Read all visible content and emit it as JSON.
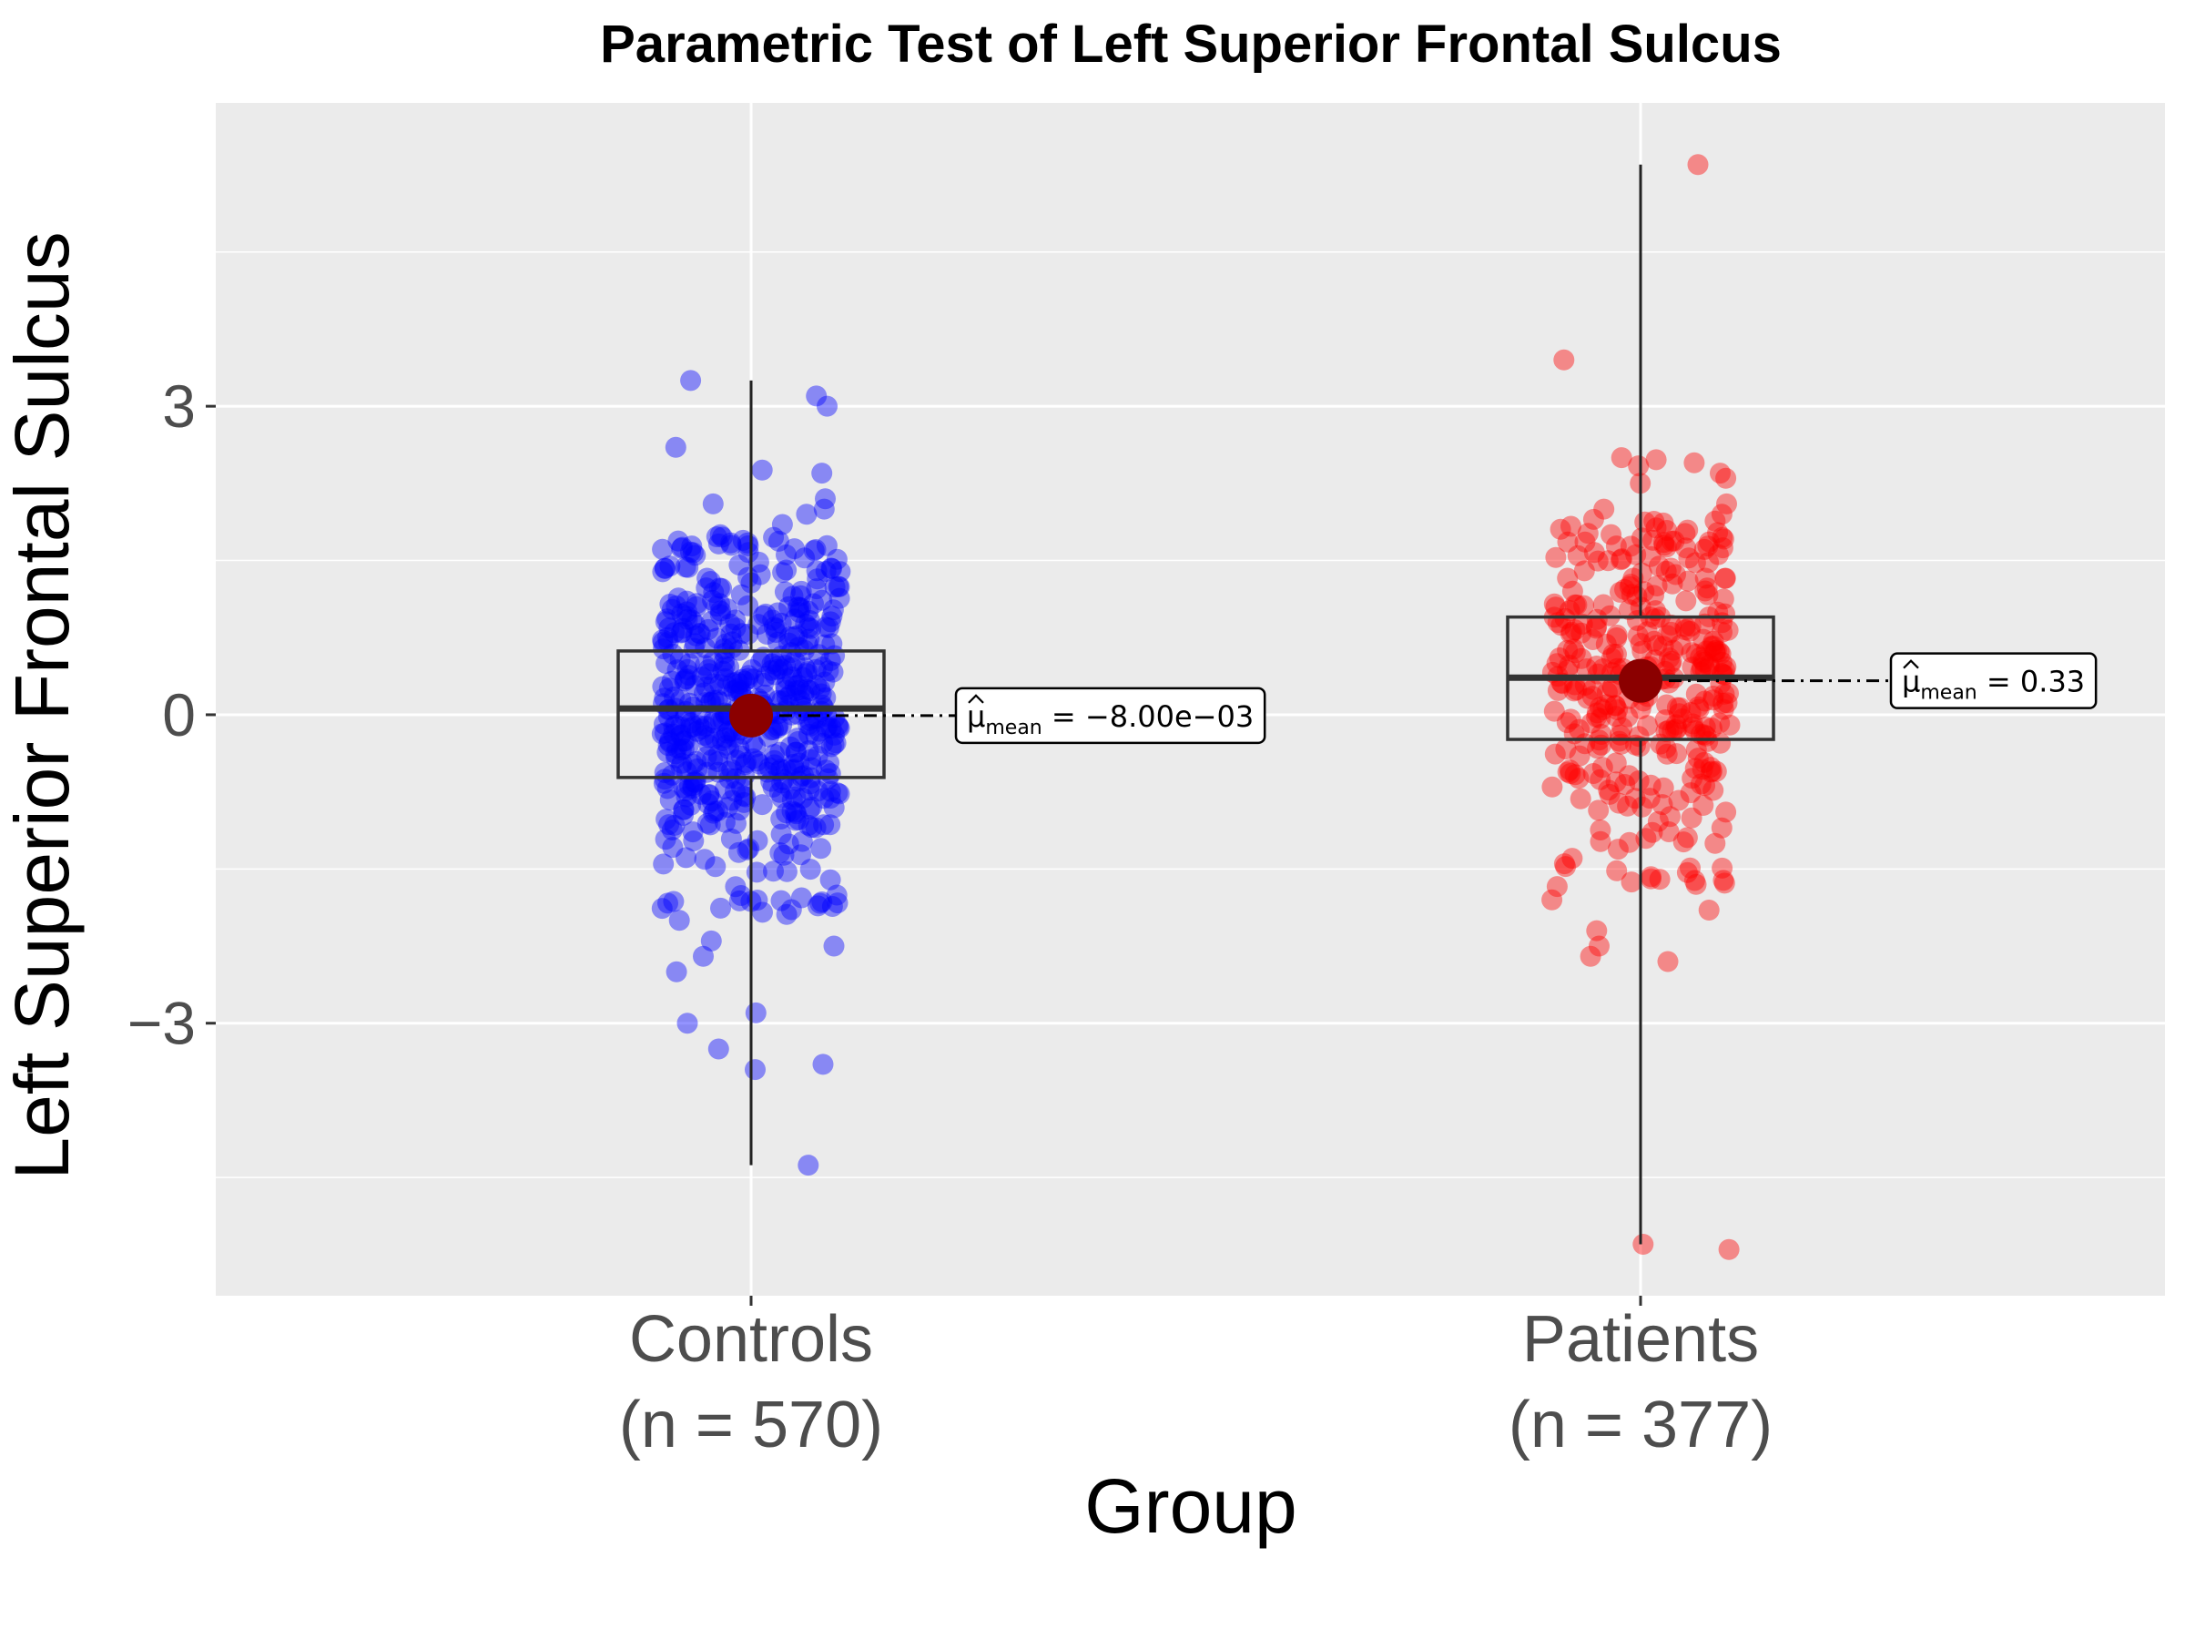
{
  "chart_data": {
    "type": "box-jitter",
    "title": "Parametric Test of Left Superior Frontal Sulcus",
    "xlabel": "Group",
    "ylabel": "Left Superior Frontal Sulcus",
    "ylim": [
      -5.65,
      5.95
    ],
    "y_ticks": [
      -3,
      0,
      3
    ],
    "y_tick_labels": [
      "−3",
      "0",
      "3"
    ],
    "grid": true,
    "categories": [
      {
        "name": "Controls",
        "n_label": "(n = 570)",
        "n": 570,
        "color": "#0000ff",
        "box": {
          "lower_whisker": -4.38,
          "q1": -0.61,
          "median": 0.06,
          "q3": 0.62,
          "upper_whisker": 3.25
        },
        "mean": -0.008,
        "mean_label_prefix": "μ",
        "mean_label_sub": "mean",
        "mean_label_value": " = −8.00e−03",
        "outliers": [
          3.25,
          3.1,
          3.0,
          2.6,
          2.38,
          2.35,
          2.1,
          2.05,
          2.0,
          1.95,
          1.85,
          1.75,
          -2.0,
          -2.2,
          -2.25,
          -2.35,
          -2.5,
          -2.9,
          -3.0,
          -3.25,
          -3.4,
          -3.45,
          -4.38
        ]
      },
      {
        "name": "Patients",
        "n_label": "(n = 377)",
        "n": 377,
        "color": "#ff0000",
        "box": {
          "lower_whisker": -5.15,
          "q1": -0.24,
          "median": 0.36,
          "q3": 0.95,
          "upper_whisker": 5.35
        },
        "mean": 0.33,
        "mean_label_prefix": "μ",
        "mean_label_sub": "mean",
        "mean_label_value": " = 0.33",
        "outliers": [
          5.35,
          3.45,
          2.5,
          2.48,
          2.45,
          2.42,
          2.35,
          2.3,
          2.25,
          2.05,
          2.0,
          1.95,
          1.9,
          -1.6,
          -1.8,
          -1.9,
          -2.1,
          -2.25,
          -2.35,
          -2.4,
          -5.15,
          -5.2
        ]
      }
    ]
  }
}
